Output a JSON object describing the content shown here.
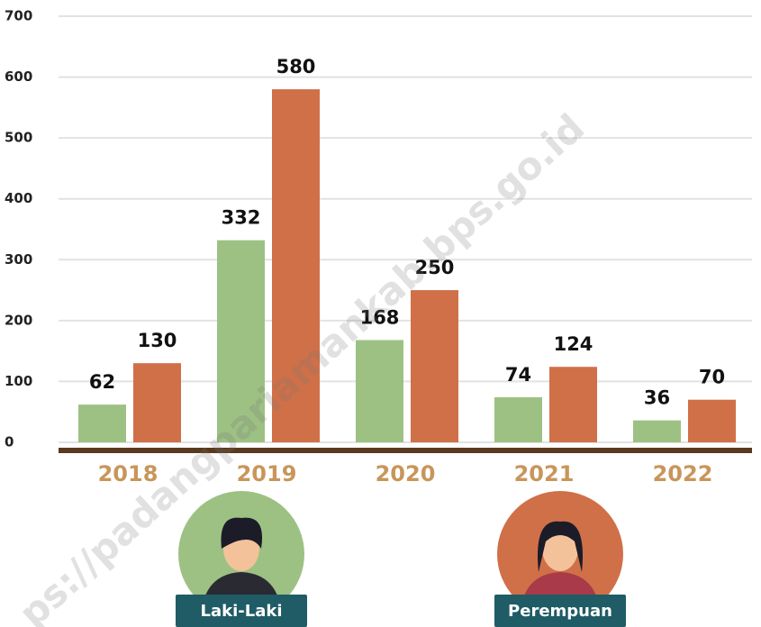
{
  "chart_data": {
    "type": "bar",
    "categories": [
      "2018",
      "2019",
      "2020",
      "2021",
      "2022"
    ],
    "series": [
      {
        "name": "Laki-Laki",
        "color": "#9dc183",
        "values": [
          62,
          332,
          168,
          74,
          36
        ]
      },
      {
        "name": "Perempuan",
        "color": "#d07048",
        "values": [
          130,
          580,
          250,
          124,
          70
        ]
      }
    ],
    "ylim": [
      0,
      700
    ],
    "yticks": [
      0,
      100,
      200,
      300,
      400,
      500,
      600,
      700
    ],
    "grid": true,
    "watermark": "ps://padangpariamankab.bps.go.id"
  }
}
